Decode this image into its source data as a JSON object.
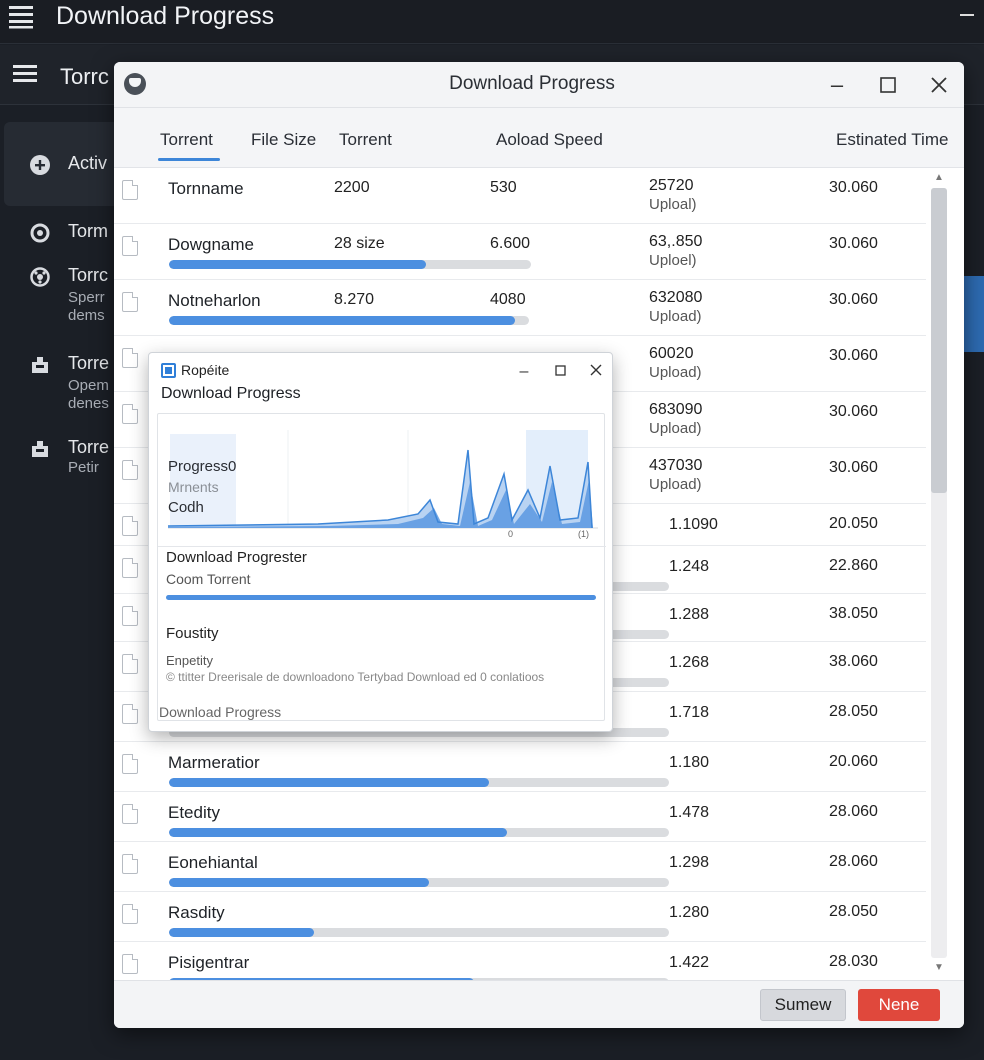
{
  "app": {
    "title": "Download Progress",
    "toolbar_title": "Torrc",
    "sidebar": [
      {
        "label": "Activ",
        "icon": "plus-circle-icon"
      },
      {
        "label": "Torm",
        "icon": "radio-icon"
      },
      {
        "label": "Torrc",
        "sub": "Sperr\ndems",
        "icon": "dial-icon"
      },
      {
        "label": "Torre",
        "sub": "Opem\ndenes",
        "icon": "box-icon"
      },
      {
        "label": "Torre",
        "sub": "Petir",
        "icon": "box-icon"
      }
    ]
  },
  "window": {
    "title": "Download Progress",
    "tabs": [
      "Torrent",
      "File Size",
      "Torrent",
      "Aoload Speed",
      "Estinated Time"
    ],
    "rows": [
      {
        "name": "Tornname",
        "size": "2200",
        "up": "530",
        "speed": "25720",
        "speed_sub": "Uploal)",
        "eta": "30.060",
        "progress": null
      },
      {
        "name": "Dowgname",
        "size": "28 size",
        "up": "6.600",
        "speed": "63,.850",
        "speed_sub": "Uploel)",
        "eta": "30.060",
        "progress": 0.71
      },
      {
        "name": "Notneharlon",
        "size": "8.270",
        "up": "4080",
        "speed": "632080",
        "speed_sub": "Upload)",
        "eta": "30.060",
        "progress": 0.96
      },
      {
        "name": "",
        "size": "",
        "up": "",
        "speed": "60020",
        "speed_sub": "Upload)",
        "eta": "30.060",
        "progress": null
      },
      {
        "name": "",
        "size": "",
        "up": "",
        "speed": "683090",
        "speed_sub": "Upload)",
        "eta": "30.060",
        "progress": null
      },
      {
        "name": "",
        "size": "",
        "up": "",
        "speed": "437030",
        "speed_sub": "Upload)",
        "eta": "30.060",
        "progress": null
      },
      {
        "name": "",
        "size": "",
        "up": "",
        "speed": "1.1090",
        "speed_sub": "",
        "eta": "20.050",
        "progress": null
      },
      {
        "name": "",
        "size": "",
        "up": "",
        "speed": "1.248",
        "speed_sub": "",
        "eta": "22.860",
        "progress": null
      },
      {
        "name": "",
        "size": "",
        "up": "",
        "speed": "1.288",
        "speed_sub": "",
        "eta": "38.050",
        "progress": null
      },
      {
        "name": "",
        "size": "",
        "up": "",
        "speed": "1.268",
        "speed_sub": "",
        "eta": "38.060",
        "progress": null
      },
      {
        "name": "",
        "size": "",
        "up": "",
        "speed": "1.718",
        "speed_sub": "",
        "eta": "28.050",
        "progress": null
      },
      {
        "name": "Marmeratior",
        "size": "",
        "up": "",
        "speed": "1.180",
        "speed_sub": "",
        "eta": "20.060",
        "progress": 0.64
      },
      {
        "name": "Etedity",
        "size": "",
        "up": "",
        "speed": "1.478",
        "speed_sub": "",
        "eta": "28.060",
        "progress": 0.675
      },
      {
        "name": "Eonehiantal",
        "size": "",
        "up": "",
        "speed": "1.298",
        "speed_sub": "",
        "eta": "28.060",
        "progress": 0.52
      },
      {
        "name": "Rasdity",
        "size": "",
        "up": "",
        "speed": "1.280",
        "speed_sub": "",
        "eta": "28.050",
        "progress": 0.29
      },
      {
        "name": "Pisigentrar",
        "size": "",
        "up": "",
        "speed": "1.422",
        "speed_sub": "",
        "eta": "28.030",
        "progress": 0.61
      }
    ],
    "buttons": {
      "sumew": "Sumew",
      "none": "Nene"
    }
  },
  "popup": {
    "app_name": "Ropéite",
    "title": "Download Progress",
    "chart_labels": {
      "progress": "Progress0",
      "mrnents": "Mrnents",
      "codh": "Codh"
    },
    "chart_ticks": [
      "0",
      "(1)"
    ],
    "section2_title": "Download Progrester",
    "section2_sub": "Coom Torrent",
    "section3_title": "Foustity",
    "section3_sub": "Enpetity",
    "note": "© ttitter Dreerisale de downloadono Tertybad Download ed 0 conlatioos",
    "footer": "Download Progress"
  }
}
